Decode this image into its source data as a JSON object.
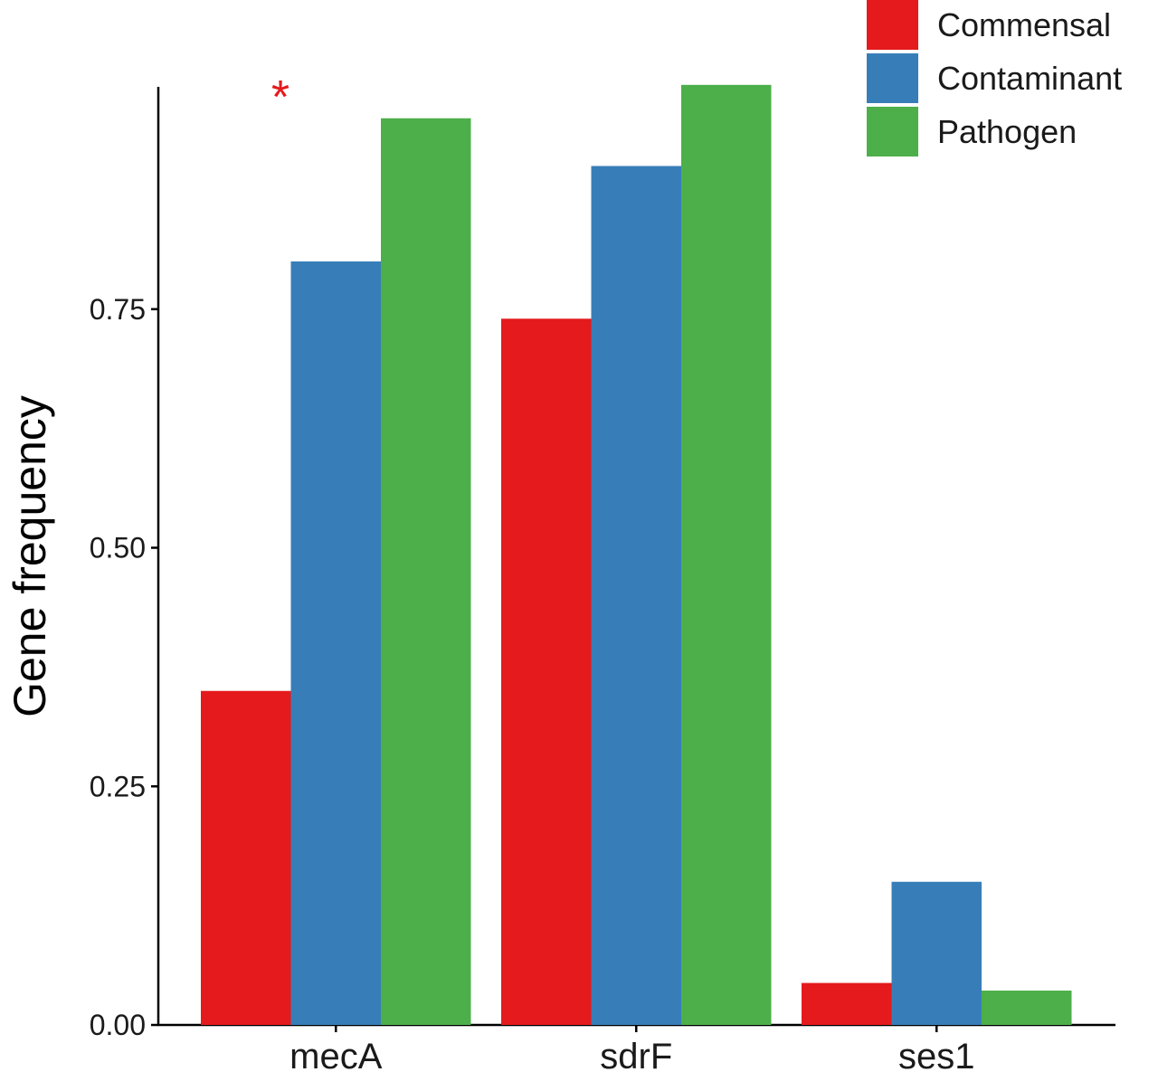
{
  "chart_data": {
    "type": "bar",
    "title": "",
    "xlabel": "",
    "ylabel": "Gene frequency",
    "ylim": [
      0,
      0.985
    ],
    "yticks": [
      0.0,
      0.25,
      0.5,
      0.75
    ],
    "ytick_labels": [
      "0.00",
      "0.25",
      "0.50",
      "0.75"
    ],
    "categories": [
      "mecA",
      "sdrF",
      "ses1"
    ],
    "series": [
      {
        "name": "Commensal",
        "color": "#e41a1c",
        "values": [
          0.35,
          0.74,
          0.044
        ]
      },
      {
        "name": "Contaminant",
        "color": "#377eb8",
        "values": [
          0.8,
          0.9,
          0.15
        ]
      },
      {
        "name": "Pathogen",
        "color": "#4daf4a",
        "values": [
          0.95,
          0.985,
          0.036
        ]
      }
    ],
    "legend": {
      "position": "top-right"
    },
    "grid": false,
    "annotations": [
      {
        "text": "*",
        "category": "mecA",
        "color": "#e41a1c"
      }
    ]
  }
}
